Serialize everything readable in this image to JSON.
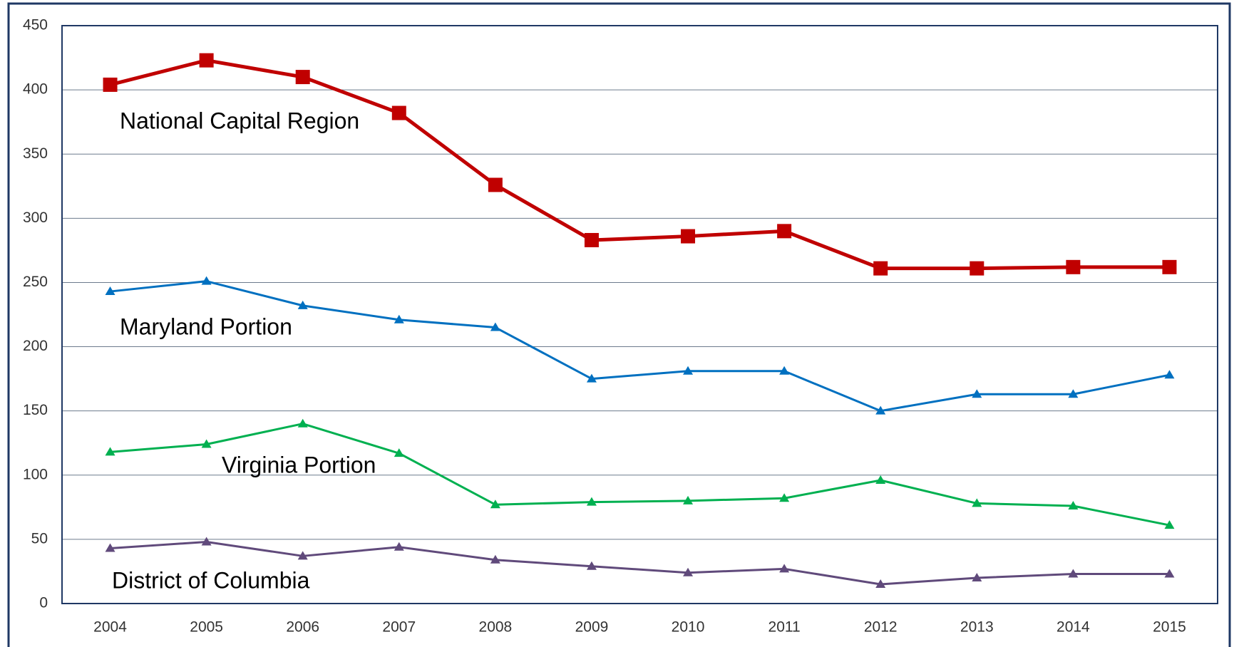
{
  "chart_data": {
    "type": "line",
    "categories": [
      "2004",
      "2005",
      "2006",
      "2007",
      "2008",
      "2009",
      "2010",
      "2011",
      "2012",
      "2013",
      "2014",
      "2015"
    ],
    "series": [
      {
        "name": "National Capital Region",
        "color": "#c00000",
        "marker": "square",
        "values": [
          404,
          423,
          410,
          382,
          326,
          283,
          286,
          290,
          261,
          261,
          262,
          262
        ]
      },
      {
        "name": "Maryland Portion",
        "color": "#0070c0",
        "marker": "triangle",
        "values": [
          243,
          251,
          232,
          221,
          215,
          175,
          181,
          181,
          150,
          163,
          163,
          178
        ]
      },
      {
        "name": "Virginia Portion",
        "color": "#00b050",
        "marker": "triangle",
        "values": [
          118,
          124,
          140,
          117,
          77,
          79,
          80,
          82,
          96,
          78,
          76,
          61
        ]
      },
      {
        "name": "District of Columbia",
        "color": "#604a7b",
        "marker": "triangle",
        "values": [
          43,
          48,
          37,
          44,
          34,
          29,
          24,
          27,
          15,
          20,
          23,
          23
        ]
      }
    ],
    "ylim": [
      0,
      450
    ],
    "yticks": [
      0,
      50,
      100,
      150,
      200,
      250,
      300,
      350,
      400,
      450
    ],
    "grid": true
  }
}
